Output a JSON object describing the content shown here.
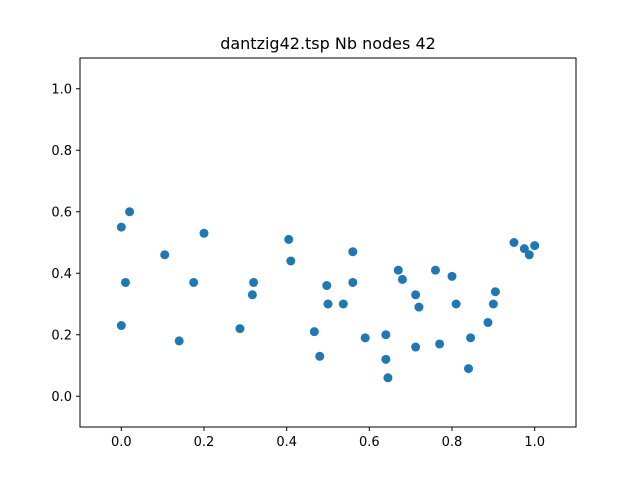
{
  "chart_data": {
    "type": "scatter",
    "title": "dantzig42.tsp Nb nodes 42",
    "xlabel": "",
    "ylabel": "",
    "xlim": [
      -0.1,
      1.1
    ],
    "ylim": [
      -0.1,
      1.1
    ],
    "xticks": [
      "0.0",
      "0.2",
      "0.4",
      "0.6",
      "0.8",
      "1.0"
    ],
    "yticks": [
      "0.0",
      "0.2",
      "0.4",
      "0.6",
      "0.8",
      "1.0"
    ],
    "grid": false,
    "marker_color": "#1f77b4",
    "points": [
      [
        0.02,
        0.6
      ],
      [
        0.0,
        0.55
      ],
      [
        0.01,
        0.37
      ],
      [
        0.0,
        0.23
      ],
      [
        0.105,
        0.46
      ],
      [
        0.14,
        0.18
      ],
      [
        0.175,
        0.37
      ],
      [
        0.2,
        0.53
      ],
      [
        0.287,
        0.22
      ],
      [
        0.317,
        0.33
      ],
      [
        0.32,
        0.37
      ],
      [
        0.405,
        0.51
      ],
      [
        0.41,
        0.44
      ],
      [
        0.467,
        0.21
      ],
      [
        0.48,
        0.13
      ],
      [
        0.497,
        0.36
      ],
      [
        0.5,
        0.3
      ],
      [
        0.537,
        0.3
      ],
      [
        0.56,
        0.47
      ],
      [
        0.56,
        0.37
      ],
      [
        0.59,
        0.19
      ],
      [
        0.64,
        0.2
      ],
      [
        0.64,
        0.12
      ],
      [
        0.645,
        0.06
      ],
      [
        0.67,
        0.41
      ],
      [
        0.68,
        0.38
      ],
      [
        0.712,
        0.33
      ],
      [
        0.712,
        0.16
      ],
      [
        0.72,
        0.29
      ],
      [
        0.76,
        0.41
      ],
      [
        0.77,
        0.17
      ],
      [
        0.8,
        0.39
      ],
      [
        0.81,
        0.3
      ],
      [
        0.84,
        0.09
      ],
      [
        0.845,
        0.19
      ],
      [
        0.887,
        0.24
      ],
      [
        0.9,
        0.3
      ],
      [
        0.905,
        0.34
      ],
      [
        0.95,
        0.5
      ],
      [
        0.975,
        0.48
      ],
      [
        0.987,
        0.46
      ],
      [
        1.0,
        0.49
      ]
    ]
  }
}
